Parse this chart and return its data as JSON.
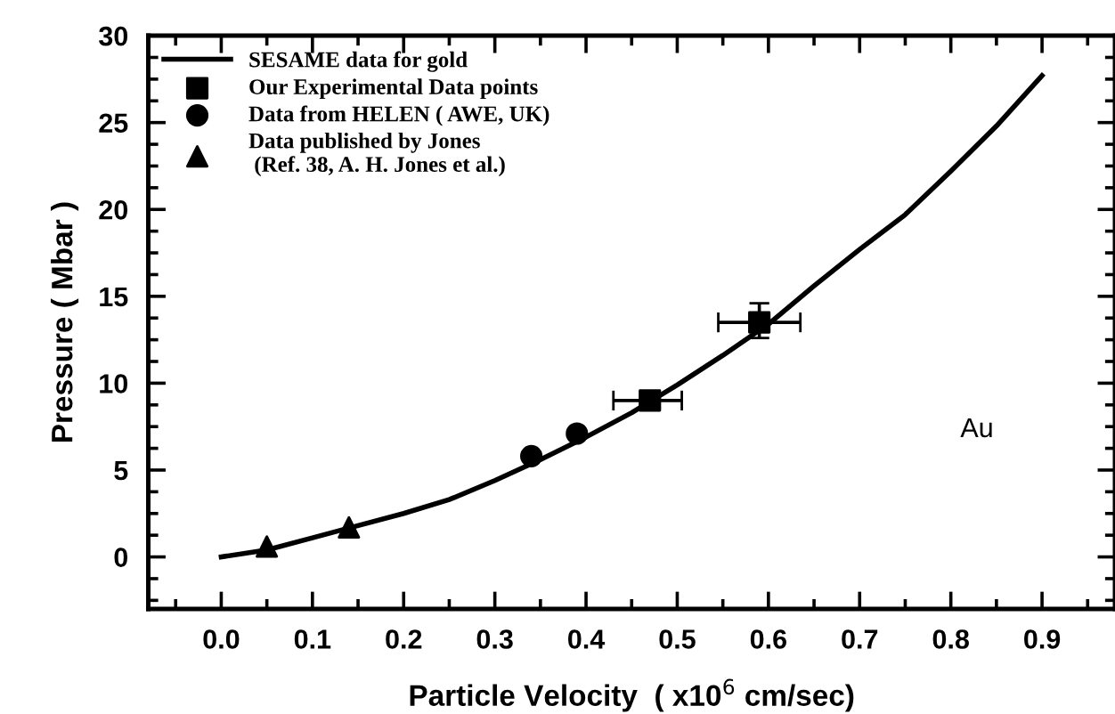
{
  "chart_data": {
    "type": "line",
    "xlabel": "Particle Velocity  ( x10$^{6}$ cm/sec)",
    "ylabel": "Pressure ( Mbar )",
    "xlim": [
      -0.08,
      0.98
    ],
    "ylim": [
      -3,
      30
    ],
    "xticks": [
      {
        "value": 0.0,
        "label": "0.0"
      },
      0.1,
      0.2,
      0.3,
      0.4,
      0.5,
      0.6,
      0.7,
      0.8,
      0.9
    ],
    "yticks": [
      0,
      5,
      10,
      15,
      20,
      25,
      30
    ],
    "grid": false,
    "legend": "top left",
    "annotations": [
      "Au"
    ],
    "series": [
      {
        "name": "SESAME data for gold",
        "color": "#000000",
        "marker": "none",
        "line_style": "solid",
        "x": [
          0,
          0.05,
          0.1,
          0.15,
          0.2,
          0.25,
          0.3,
          0.35,
          0.4,
          0.45,
          0.5,
          0.55,
          0.6,
          0.65,
          0.7,
          0.75,
          0.8,
          0.85,
          0.9
        ],
        "values": [
          0,
          0.4,
          1.1,
          1.8,
          2.5,
          3.3,
          4.4,
          5.6,
          6.9,
          8.3,
          9.9,
          11.6,
          13.4,
          15.6,
          17.7,
          19.7,
          22.2,
          24.8,
          27.7
        ]
      },
      {
        "name": "Our Experimental Data points",
        "type": "scatter",
        "color": "#000000",
        "marker": "square",
        "x": [
          0.47,
          0.59
        ],
        "values": [
          9.0,
          13.5
        ],
        "errors": [
          null,
          [
            12.6,
            14.6
          ]
        ],
        "xerrors": [
          [
            0.43,
            0.505
          ],
          [
            0.545,
            0.635
          ]
        ]
      },
      {
        "name": "Data from HELEN ( AWE, UK)",
        "type": "scatter",
        "color": "#000000",
        "marker": "circle",
        "x": [
          0.34,
          0.39
        ],
        "values": [
          5.8,
          7.1
        ]
      },
      {
        "name": "Data published by Jones\n (Ref. 38, A. H. Jones et al.)",
        "type": "scatter",
        "color": "#000000",
        "marker": "triangle",
        "x": [
          0.05,
          0.14
        ],
        "values": [
          0.6,
          1.7
        ]
      }
    ]
  }
}
